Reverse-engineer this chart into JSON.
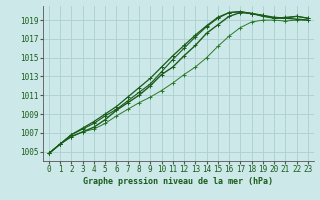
{
  "title": "Graphe pression niveau de la mer (hPa)",
  "xlabel_ticks": [
    0,
    1,
    2,
    3,
    4,
    5,
    6,
    7,
    8,
    9,
    10,
    11,
    12,
    13,
    14,
    15,
    16,
    17,
    18,
    19,
    20,
    21,
    22,
    23
  ],
  "yticks": [
    1005,
    1007,
    1009,
    1011,
    1013,
    1015,
    1017,
    1019
  ],
  "ylim": [
    1004.0,
    1020.5
  ],
  "xlim": [
    -0.5,
    23.5
  ],
  "background_color": "#cce8e8",
  "grid_color": "#aad0d0",
  "line_color_dark": "#1a5c1a",
  "line_color_mid": "#2a7a2a",
  "series1": [
    1004.8,
    1005.8,
    1006.6,
    1007.1,
    1007.6,
    1008.4,
    1009.4,
    1010.2,
    1011.0,
    1012.0,
    1013.2,
    1014.0,
    1015.2,
    1016.3,
    1017.6,
    1018.5,
    1019.4,
    1019.8,
    1019.7,
    1019.5,
    1019.3,
    1019.2,
    1019.1,
    1019.0
  ],
  "series2": [
    1004.8,
    1005.8,
    1006.6,
    1007.1,
    1007.4,
    1008.0,
    1008.8,
    1009.5,
    1010.2,
    1010.8,
    1011.5,
    1012.3,
    1013.2,
    1014.0,
    1015.0,
    1016.2,
    1017.3,
    1018.2,
    1018.8,
    1019.0,
    1019.0,
    1018.9,
    1019.0,
    1019.0
  ],
  "series3": [
    1004.8,
    1005.8,
    1006.8,
    1007.4,
    1008.0,
    1008.8,
    1009.5,
    1010.4,
    1011.3,
    1012.2,
    1013.5,
    1014.8,
    1016.0,
    1017.2,
    1018.3,
    1019.2,
    1019.8,
    1019.9,
    1019.7,
    1019.5,
    1019.2,
    1019.3,
    1019.4,
    1019.2
  ],
  "series4": [
    1004.8,
    1005.8,
    1006.8,
    1007.5,
    1008.2,
    1009.0,
    1009.8,
    1010.8,
    1011.8,
    1012.8,
    1014.0,
    1015.2,
    1016.3,
    1017.4,
    1018.4,
    1019.3,
    1019.8,
    1019.9,
    1019.7,
    1019.4,
    1019.2,
    1019.2,
    1019.4,
    1019.2
  ],
  "ylabel_fontsize": 5.5,
  "xlabel_fontsize": 5.5,
  "title_fontsize": 6.0,
  "marker_size": 2.5,
  "marker_ew": 0.7,
  "line_width": 0.8
}
